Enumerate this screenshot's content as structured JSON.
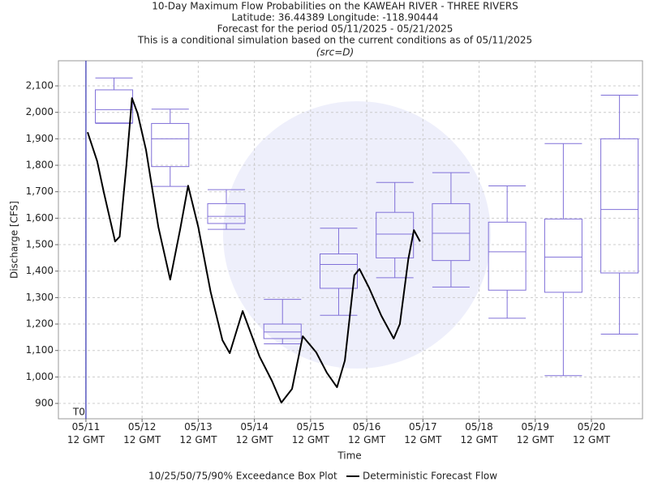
{
  "chart_data": {
    "type": "box",
    "title": "10-Day Maximum Flow Probabilities on the KAWEAH RIVER - THREE RIVERS",
    "subtitle": [
      "Latitude: 36.44389 Longitude: -118.90444",
      "Forecast for the period 05/11/2025 - 05/21/2025",
      "This is a conditional simulation based on the current conditions as of 05/11/2025",
      "(src=D)"
    ],
    "xlabel": "Time",
    "ylabel": "Discharge [CFS]",
    "xlim": [
      -0.49,
      9.91
    ],
    "ylim": [
      842,
      2195
    ],
    "xticks": [
      {
        "value": 0,
        "label": "05/11\n12 GMT"
      },
      {
        "value": 1,
        "label": "05/12\n12 GMT"
      },
      {
        "value": 2,
        "label": "05/13\n12 GMT"
      },
      {
        "value": 3,
        "label": "05/14\n12 GMT"
      },
      {
        "value": 4,
        "label": "05/15\n12 GMT"
      },
      {
        "value": 5,
        "label": "05/16\n12 GMT"
      },
      {
        "value": 6,
        "label": "05/17\n12 GMT"
      },
      {
        "value": 7,
        "label": "05/18\n12 GMT"
      },
      {
        "value": 8,
        "label": "05/19\n12 GMT"
      },
      {
        "value": 9,
        "label": "05/20\n12 GMT"
      }
    ],
    "yticks": [
      900,
      {
        "value": 1000,
        "label": "1,000"
      },
      {
        "value": 1100,
        "label": "1,100"
      },
      {
        "value": 1200,
        "label": "1,200"
      },
      {
        "value": 1300,
        "label": "1,300"
      },
      {
        "value": 1400,
        "label": "1,400"
      },
      {
        "value": 1500,
        "label": "1,500"
      },
      {
        "value": 1600,
        "label": "1,600"
      },
      {
        "value": 1700,
        "label": "1,700"
      },
      {
        "value": 1800,
        "label": "1,800"
      },
      {
        "value": 1900,
        "label": "1,900"
      },
      {
        "value": 2000,
        "label": "2,000"
      },
      {
        "value": 2100,
        "label": "2,100"
      }
    ],
    "grid": true,
    "t0": {
      "label": "T0",
      "x": 0,
      "color": "#3030b0"
    },
    "box_series": {
      "name": "10/25/50/75/90% Exceedance Box Plot",
      "color": "#8070d8",
      "x": [
        0.5,
        1.5,
        2.5,
        3.5,
        4.5,
        5.5,
        6.5,
        7.5,
        8.5,
        9.5
      ],
      "p90": [
        2130,
        2012,
        1708,
        1293,
        1562,
        1735,
        1772,
        1722,
        1882,
        2065
      ],
      "p75": [
        2085,
        1958,
        1655,
        1200,
        1465,
        1622,
        1655,
        1585,
        1597,
        1900
      ],
      "p50": [
        2010,
        1900,
        1607,
        1170,
        1425,
        1540,
        1543,
        1473,
        1453,
        1633
      ],
      "p25": [
        1960,
        1795,
        1580,
        1145,
        1335,
        1450,
        1440,
        1328,
        1320,
        1393
      ],
      "p10": [
        1958,
        1720,
        1558,
        1125,
        1233,
        1375,
        1340,
        1222,
        1005,
        1162
      ]
    },
    "line_series": {
      "name": "Deterministic Forecast Flow",
      "color": "#000000",
      "x": [
        0.03,
        0.2,
        0.32,
        0.52,
        0.6,
        0.72,
        0.82,
        0.92,
        1.07,
        1.29,
        1.5,
        1.68,
        1.82,
        2.0,
        2.22,
        2.43,
        2.56,
        2.79,
        3.09,
        3.31,
        3.48,
        3.67,
        3.86,
        4.1,
        4.29,
        4.47,
        4.61,
        4.78,
        4.87,
        5.04,
        5.26,
        5.48,
        5.59,
        5.74,
        5.84,
        5.95
      ],
      "values": [
        1925,
        1815,
        1696,
        1512,
        1530,
        1800,
        2054,
        1996,
        1858,
        1567,
        1368,
        1560,
        1723,
        1567,
        1322,
        1139,
        1090,
        1249,
        1078,
        986,
        903,
        955,
        1154,
        1093,
        1016,
        961,
        1062,
        1384,
        1408,
        1338,
        1231,
        1145,
        1200,
        1445,
        1555,
        1512
      ]
    }
  }
}
